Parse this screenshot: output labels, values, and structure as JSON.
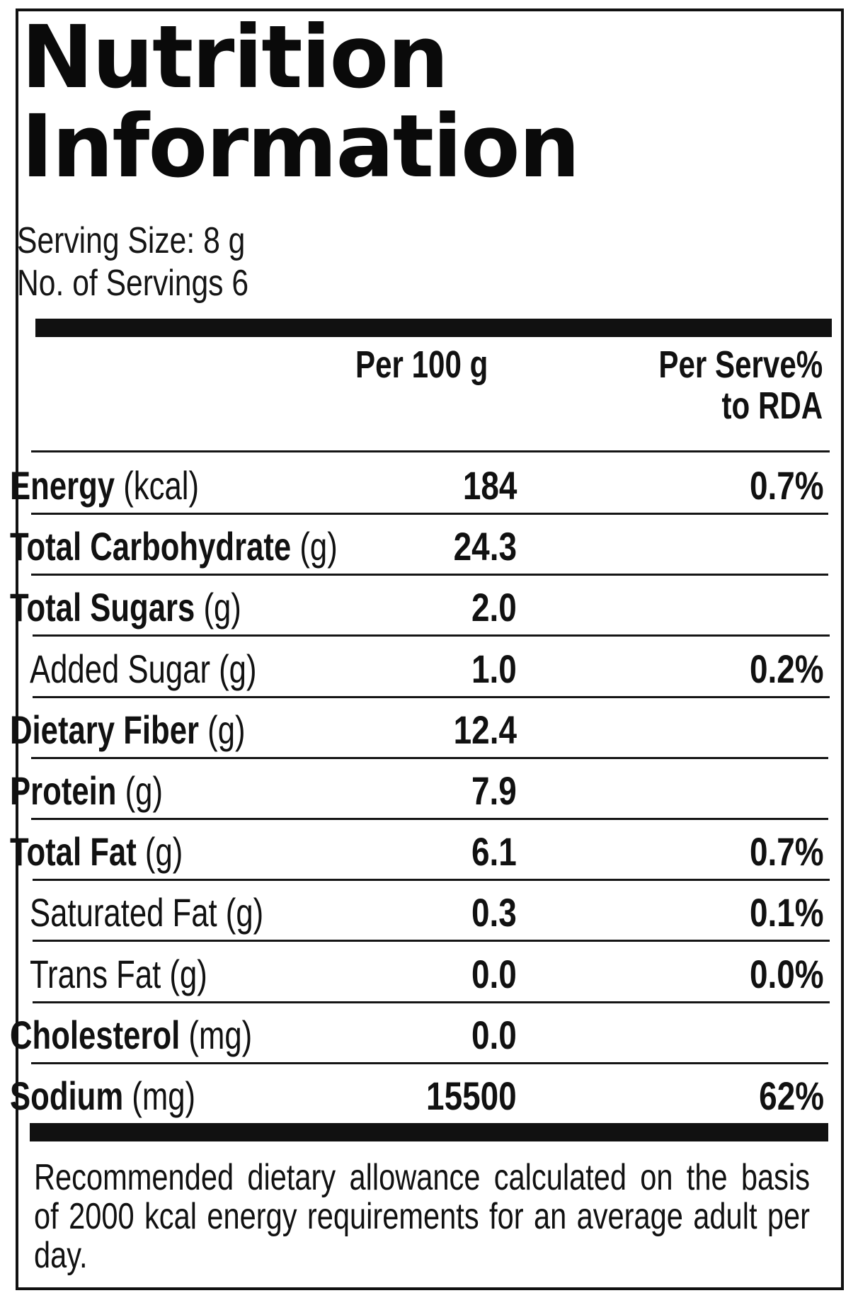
{
  "title": {
    "line1": "Nutrition",
    "line2": "Information"
  },
  "serving": {
    "size": "Serving Size: 8 g",
    "count": "No. of Servings 6"
  },
  "columns": {
    "per100": "Per 100 g",
    "rda_line1": "Per Serve%",
    "rda_line2": "to RDA"
  },
  "rows": [
    {
      "name": "Energy",
      "unit": "(kcal)",
      "per100": "184",
      "rda": "0.7%"
    },
    {
      "name": "Total Carbohydrate",
      "unit": "(g)",
      "per100": "24.3",
      "rda": ""
    },
    {
      "name": "Total Sugars",
      "unit": "(g)",
      "per100": "2.0",
      "rda": ""
    },
    {
      "name": "Added Sugar",
      "unit": "(g)",
      "per100": "1.0",
      "rda": "0.2%"
    },
    {
      "name": "Dietary Fiber",
      "unit": "(g)",
      "per100": "12.4",
      "rda": ""
    },
    {
      "name": "Protein",
      "unit": "(g)",
      "per100": "7.9",
      "rda": ""
    },
    {
      "name": "Total Fat",
      "unit": "(g)",
      "per100": "6.1",
      "rda": "0.7%"
    },
    {
      "name": "Saturated Fat",
      "unit": "(g)",
      "per100": "0.3",
      "rda": "0.1%"
    },
    {
      "name": "Trans Fat",
      "unit": "(g)",
      "per100": "0.0",
      "rda": "0.0%"
    },
    {
      "name": "Cholesterol",
      "unit": "(mg)",
      "per100": "0.0",
      "rda": ""
    },
    {
      "name": "Sodium",
      "unit": "(mg)",
      "per100": "15500",
      "rda": "62%"
    }
  ],
  "footnote": "Recommended dietary allowance calculated on the basis of 2000 kcal energy requirements for an average adult per day."
}
